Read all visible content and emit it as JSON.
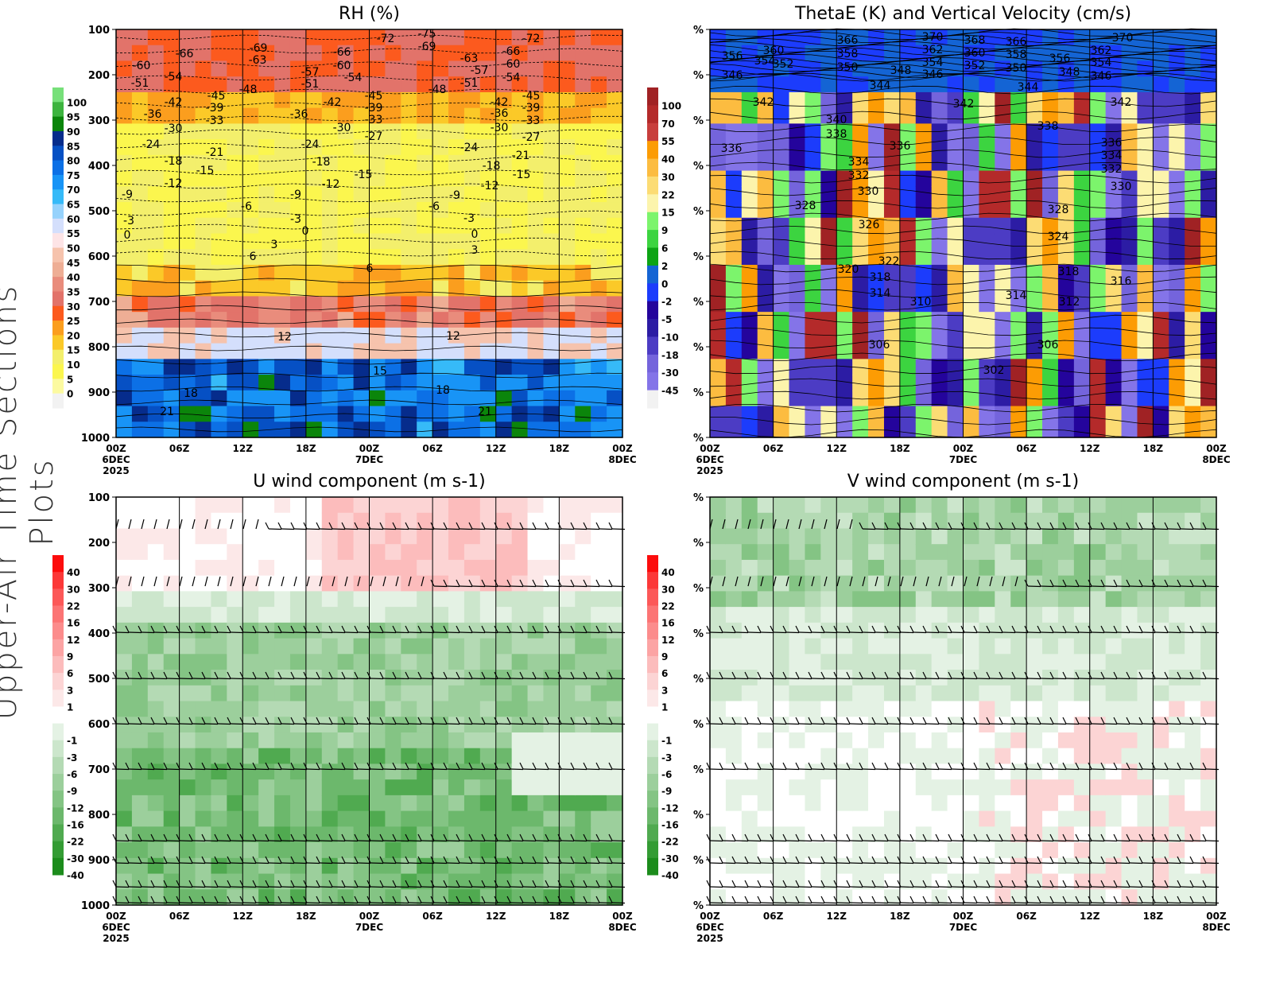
{
  "side_title": "Upper-Air Time Sections Plots",
  "x_ticks": [
    "00Z",
    "06Z",
    "12Z",
    "18Z",
    "00Z",
    "06Z",
    "12Z",
    "18Z",
    "00Z"
  ],
  "x_dates": {
    "first": "6DEC",
    "year": "2025",
    "mid": "7DEC",
    "last": "8DEC"
  },
  "pressure_ticks": [
    "100",
    "200",
    "300",
    "400",
    "500",
    "600",
    "700",
    "800",
    "900",
    "1000"
  ],
  "right_y_tick": "%",
  "chart_data": [
    {
      "type": "heatmap",
      "title": "RH (%)",
      "ylim": [
        1000,
        100
      ],
      "colorbar": {
        "labels": [
          "100",
          "95",
          "90",
          "85",
          "80",
          "75",
          "70",
          "65",
          "60",
          "55",
          "50",
          "45",
          "40",
          "35",
          "30",
          "25",
          "20",
          "15",
          "10",
          "5",
          "0"
        ],
        "colors": [
          "#77e07a",
          "#3db43f",
          "#0b850b",
          "#062c8c",
          "#0650c4",
          "#0c70e6",
          "#1894f6",
          "#36baf8",
          "#96d2fc",
          "#d4dffc",
          "#fde4e6",
          "#f6c3ad",
          "#eeae95",
          "#e98c7c",
          "#e2736a",
          "#fc5a1e",
          "#fb9e1e",
          "#fbc928",
          "#f3ef6c",
          "#fbf64e",
          "#fcfaa0",
          "#f2f2f2"
        ]
      },
      "contour_labels": [
        "-60",
        "-51",
        "-66",
        "-54",
        "-69",
        "-63",
        "-48",
        "-45",
        "-42",
        "-39",
        "-36",
        "-33",
        "-30",
        "-24",
        "-21",
        "-18",
        "-15",
        "-12",
        "-9",
        "-3",
        "0",
        "-6",
        "3",
        "6",
        "-57",
        "-51",
        "-66",
        "-60",
        "-54",
        "-72",
        "-75",
        "-69",
        "-42",
        "-36",
        "-45",
        "-39",
        "-33",
        "-30",
        "-27",
        "-24",
        "-18",
        "-15",
        "-12",
        "-9",
        "-3",
        "0",
        "6",
        "12",
        "15",
        "18",
        "21",
        "-48",
        "-63",
        "-57",
        "-51",
        "-66",
        "-60",
        "-54",
        "-72",
        "-45",
        "-42",
        "-39",
        "-36",
        "-33",
        "-30",
        "-27",
        "-24",
        "-21",
        "-18",
        "-15",
        "-12",
        "-9",
        "-6",
        "-3",
        "0",
        "3",
        "12",
        "18",
        "21"
      ]
    },
    {
      "type": "heatmap",
      "title": "ThetaE (K) and Vertical Velocity (cm/s)",
      "colorbar": {
        "labels": [
          "100",
          "70",
          "55",
          "40",
          "30",
          "22",
          "15",
          "9",
          "6",
          "2",
          "0",
          "-2",
          "-5",
          "-10",
          "-18",
          "-30",
          "-45"
        ],
        "colors": [
          "#a02224",
          "#b42a2a",
          "#c83e3c",
          "#fc9c04",
          "#fcbc40",
          "#fcdc74",
          "#fcf4ac",
          "#7cf46c",
          "#3cd440",
          "#0ca414",
          "#1464d4",
          "#1c3cfc",
          "#24049c",
          "#2c1ca4",
          "#4c3cc4",
          "#7464dc",
          "#8474e8",
          "#f2f2f2"
        ]
      },
      "contour_labels": [
        "356",
        "354",
        "360",
        "352",
        "346",
        "366",
        "358",
        "350",
        "370",
        "362",
        "354",
        "346",
        "348",
        "368",
        "360",
        "352",
        "366",
        "358",
        "350",
        "356",
        "348",
        "370",
        "362",
        "354",
        "346",
        "344",
        "344",
        "342",
        "342",
        "342",
        "340",
        "338",
        "338",
        "336",
        "336",
        "336",
        "334",
        "334",
        "332",
        "332",
        "330",
        "330",
        "328",
        "328",
        "326",
        "324",
        "322",
        "320",
        "318",
        "318",
        "316",
        "314",
        "314",
        "312",
        "310",
        "306",
        "306",
        "302"
      ]
    },
    {
      "type": "heatmap",
      "title": "U wind component (m s-1)",
      "ylim": [
        1000,
        100
      ],
      "colorbar": {
        "labels": [
          "40",
          "30",
          "22",
          "16",
          "12",
          "9",
          "6",
          "3",
          "1",
          "-1",
          "-3",
          "-6",
          "-9",
          "-12",
          "-16",
          "-22",
          "-30",
          "-40"
        ],
        "colors": [
          "#fc0c0c",
          "#fc3838",
          "#fc5858",
          "#fc7474",
          "#fc8c8c",
          "#fca4a4",
          "#fcbcbc",
          "#fcd4d4",
          "#fce8e8",
          "#ffffff",
          "#e4f2e4",
          "#cce6cc",
          "#b4dab4",
          "#9ccf9c",
          "#84c484",
          "#6cb86c",
          "#50aa50",
          "#349c34",
          "#1c8c1c"
        ]
      }
    },
    {
      "type": "heatmap",
      "title": "V wind component (m s-1)",
      "colorbar": {
        "labels": [
          "40",
          "30",
          "22",
          "16",
          "12",
          "9",
          "6",
          "3",
          "1",
          "-1",
          "-3",
          "-6",
          "-9",
          "-12",
          "-16",
          "-22",
          "-30",
          "-40"
        ],
        "colors": [
          "#fc0c0c",
          "#fc3838",
          "#fc5858",
          "#fc7474",
          "#fc8c8c",
          "#fca4a4",
          "#fcbcbc",
          "#fcd4d4",
          "#fce8e8",
          "#ffffff",
          "#e4f2e4",
          "#cce6cc",
          "#b4dab4",
          "#9ccf9c",
          "#84c484",
          "#6cb86c",
          "#50aa50",
          "#349c34",
          "#1c8c1c"
        ]
      }
    }
  ]
}
